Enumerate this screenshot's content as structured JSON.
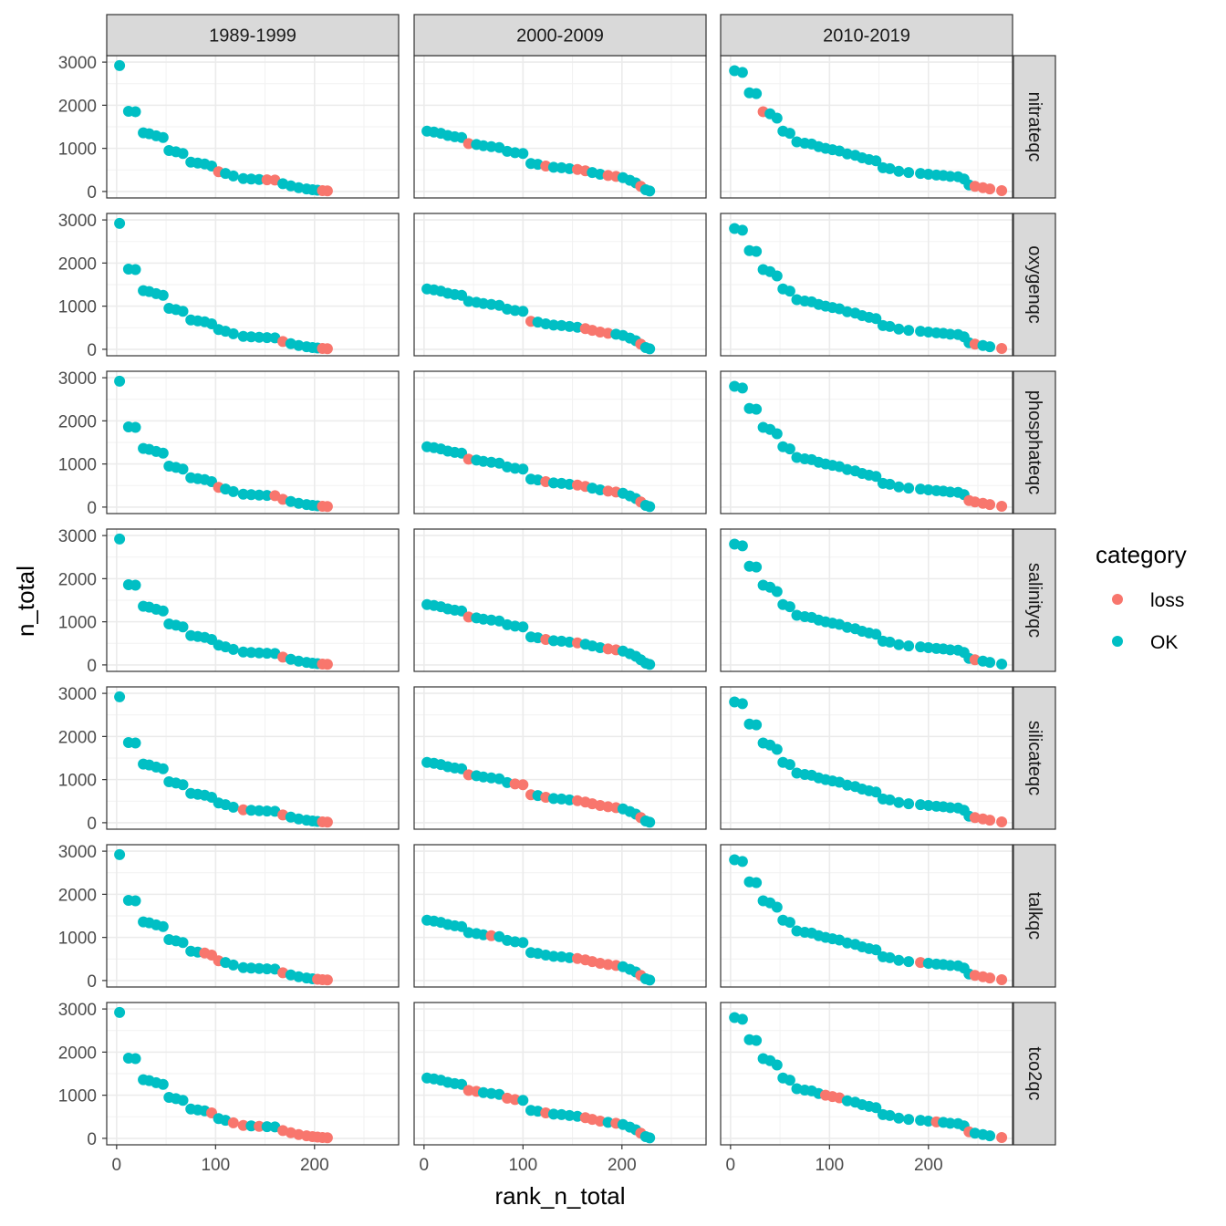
{
  "chart_data": {
    "type": "scatter",
    "xlabel": "rank_n_total",
    "ylabel": "n_total",
    "xlim": [
      -10,
      285
    ],
    "ylim": [
      -150,
      3150
    ],
    "x_ticks": [
      0,
      100,
      200
    ],
    "y_ticks": [
      0,
      1000,
      2000,
      3000
    ],
    "columns": [
      "1989-1999",
      "2000-2009",
      "2010-2019"
    ],
    "rows": [
      "nitrateqc",
      "oxygenqc",
      "phosphateqc",
      "salinityqc",
      "silicateqc",
      "talkqc",
      "tco2qc"
    ],
    "legend": {
      "title": "category",
      "placement": "right",
      "items": [
        {
          "label": "loss",
          "color": "#F8766D"
        },
        {
          "label": "OK",
          "color": "#00BFC4"
        }
      ]
    },
    "curves": {
      "1989-1999": [
        [
          3,
          2920
        ],
        [
          12,
          1860
        ],
        [
          19,
          1850
        ],
        [
          27,
          1360
        ],
        [
          33,
          1340
        ],
        [
          40,
          1290
        ],
        [
          47,
          1250
        ],
        [
          53,
          950
        ],
        [
          60,
          920
        ],
        [
          67,
          880
        ],
        [
          75,
          680
        ],
        [
          82,
          660
        ],
        [
          89,
          640
        ],
        [
          96,
          590
        ],
        [
          103,
          460
        ],
        [
          110,
          420
        ],
        [
          118,
          360
        ],
        [
          128,
          300
        ],
        [
          136,
          290
        ],
        [
          144,
          280
        ],
        [
          152,
          270
        ],
        [
          160,
          265
        ],
        [
          168,
          180
        ],
        [
          176,
          130
        ],
        [
          184,
          90
        ],
        [
          192,
          60
        ],
        [
          198,
          40
        ],
        [
          203,
          30
        ],
        [
          208,
          20
        ],
        [
          213,
          15
        ]
      ],
      "2000-2009": [
        [
          3,
          1400
        ],
        [
          10,
          1380
        ],
        [
          17,
          1350
        ],
        [
          24,
          1300
        ],
        [
          31,
          1270
        ],
        [
          38,
          1250
        ],
        [
          45,
          1110
        ],
        [
          53,
          1090
        ],
        [
          60,
          1060
        ],
        [
          68,
          1040
        ],
        [
          76,
          1020
        ],
        [
          84,
          930
        ],
        [
          92,
          900
        ],
        [
          100,
          880
        ],
        [
          108,
          650
        ],
        [
          115,
          630
        ],
        [
          123,
          590
        ],
        [
          131,
          560
        ],
        [
          139,
          550
        ],
        [
          147,
          530
        ],
        [
          155,
          510
        ],
        [
          163,
          480
        ],
        [
          170,
          440
        ],
        [
          178,
          400
        ],
        [
          186,
          370
        ],
        [
          194,
          350
        ],
        [
          201,
          320
        ],
        [
          208,
          260
        ],
        [
          214,
          200
        ],
        [
          219,
          120
        ],
        [
          224,
          40
        ],
        [
          228,
          10
        ]
      ],
      "2010-2019": [
        [
          4,
          2800
        ],
        [
          12,
          2760
        ],
        [
          19,
          2290
        ],
        [
          26,
          2270
        ],
        [
          33,
          1850
        ],
        [
          40,
          1800
        ],
        [
          47,
          1700
        ],
        [
          53,
          1400
        ],
        [
          60,
          1350
        ],
        [
          67,
          1150
        ],
        [
          75,
          1120
        ],
        [
          82,
          1100
        ],
        [
          89,
          1040
        ],
        [
          96,
          1000
        ],
        [
          103,
          970
        ],
        [
          110,
          940
        ],
        [
          118,
          870
        ],
        [
          126,
          840
        ],
        [
          133,
          780
        ],
        [
          140,
          740
        ],
        [
          147,
          710
        ],
        [
          154,
          550
        ],
        [
          161,
          530
        ],
        [
          170,
          470
        ],
        [
          180,
          440
        ],
        [
          192,
          420
        ],
        [
          200,
          400
        ],
        [
          208,
          380
        ],
        [
          215,
          370
        ],
        [
          222,
          350
        ],
        [
          230,
          340
        ],
        [
          236,
          290
        ],
        [
          241,
          150
        ],
        [
          247,
          120
        ],
        [
          255,
          90
        ],
        [
          262,
          60
        ],
        [
          274,
          20
        ]
      ]
    },
    "loss_indices": {
      "nitrateqc": {
        "1989-1999": [
          14,
          20,
          21,
          28,
          29
        ],
        "2000-2009": [
          6,
          16,
          20,
          21,
          24,
          25,
          29
        ],
        "2010-2019": [
          4,
          33,
          34,
          35,
          36
        ]
      },
      "oxygenqc": {
        "1989-1999": [
          22,
          28,
          29
        ],
        "2000-2009": [
          14,
          21,
          22,
          23,
          24,
          29
        ],
        "2010-2019": [
          33,
          36
        ]
      },
      "phosphateqc": {
        "1989-1999": [
          14,
          21,
          22,
          28,
          29
        ],
        "2000-2009": [
          6,
          16,
          20,
          21,
          24,
          25,
          29
        ],
        "2010-2019": [
          32,
          33,
          34,
          35,
          36
        ]
      },
      "salinityqc": {
        "1989-1999": [
          22,
          28,
          29
        ],
        "2000-2009": [
          6,
          16,
          20,
          24,
          25
        ],
        "2010-2019": [
          33
        ]
      },
      "silicateqc": {
        "1989-1999": [
          17,
          22,
          28,
          29
        ],
        "2000-2009": [
          6,
          12,
          13,
          14,
          16,
          20,
          21,
          22,
          23,
          24,
          25,
          29
        ],
        "2010-2019": [
          33,
          34,
          35,
          36
        ]
      },
      "talkqc": {
        "1989-1999": [
          12,
          13,
          14,
          22,
          27,
          28,
          29
        ],
        "2000-2009": [
          9,
          20,
          21,
          22,
          23,
          24,
          25,
          29
        ],
        "2010-2019": [
          25,
          33,
          34,
          35,
          36
        ]
      },
      "tco2qc": {
        "1989-1999": [
          13,
          16,
          17,
          19,
          22,
          23,
          24,
          25,
          26,
          27,
          28,
          29
        ],
        "2000-2009": [
          6,
          7,
          11,
          12,
          16,
          21,
          22,
          23,
          25,
          29
        ],
        "2010-2019": [
          13,
          14,
          15,
          27,
          32,
          36
        ]
      }
    }
  }
}
